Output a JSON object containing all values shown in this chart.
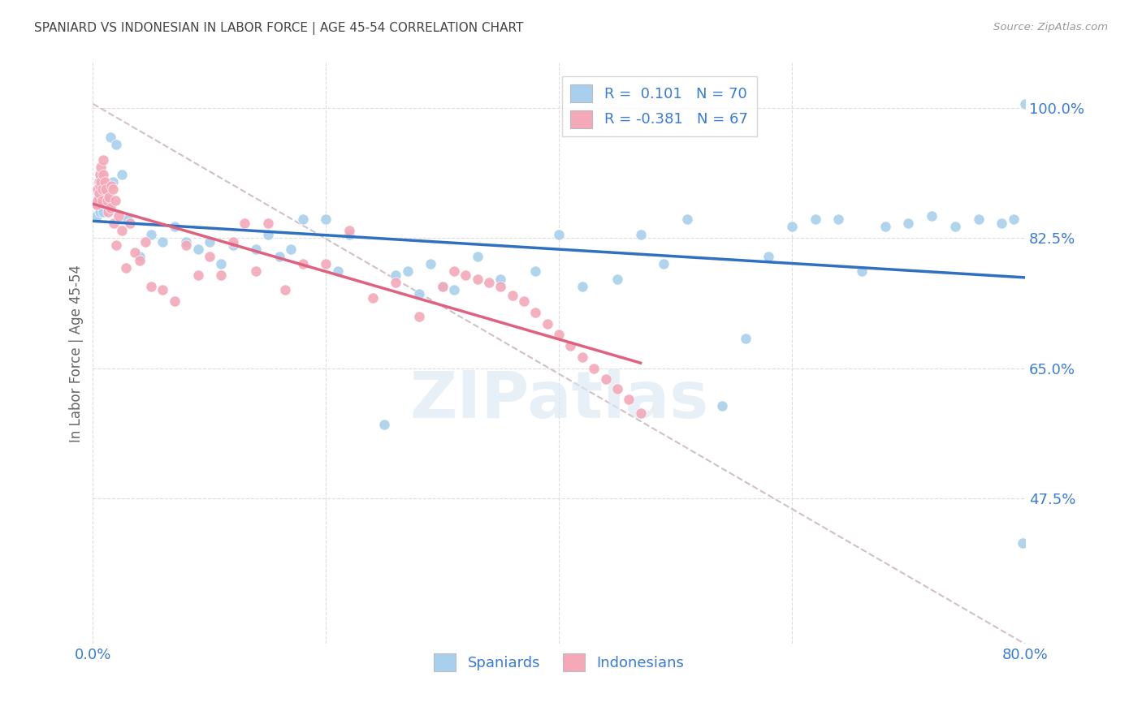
{
  "title": "SPANIARD VS INDONESIAN IN LABOR FORCE | AGE 45-54 CORRELATION CHART",
  "source": "Source: ZipAtlas.com",
  "ylabel": "In Labor Force | Age 45-54",
  "xlim": [
    0.0,
    0.8
  ],
  "ylim": [
    0.28,
    1.06
  ],
  "legend_blue_r": "0.101",
  "legend_blue_n": "70",
  "legend_pink_r": "-0.381",
  "legend_pink_n": "67",
  "blue_color": "#A8CFED",
  "pink_color": "#F4A8B8",
  "blue_line_color": "#3070C0",
  "pink_line_color": "#E06080",
  "ref_line_color": "#D0C0C8",
  "text_color": "#3A7BD5",
  "title_color": "#444444",
  "watermark": "ZIPatlas",
  "blue_x": [
    0.003,
    0.004,
    0.005,
    0.005,
    0.006,
    0.006,
    0.007,
    0.007,
    0.008,
    0.008,
    0.009,
    0.009,
    0.01,
    0.011,
    0.012,
    0.013,
    0.015,
    0.017,
    0.02,
    0.025,
    0.03,
    0.04,
    0.05,
    0.06,
    0.07,
    0.08,
    0.09,
    0.1,
    0.11,
    0.12,
    0.14,
    0.15,
    0.16,
    0.17,
    0.18,
    0.2,
    0.21,
    0.22,
    0.25,
    0.26,
    0.27,
    0.28,
    0.29,
    0.3,
    0.31,
    0.33,
    0.35,
    0.38,
    0.4,
    0.42,
    0.45,
    0.47,
    0.49,
    0.51,
    0.54,
    0.56,
    0.58,
    0.6,
    0.62,
    0.64,
    0.66,
    0.68,
    0.7,
    0.72,
    0.74,
    0.76,
    0.78,
    0.79,
    0.798,
    0.8
  ],
  "blue_y": [
    0.855,
    0.87,
    0.865,
    0.88,
    0.875,
    0.86,
    0.885,
    0.87,
    0.88,
    0.865,
    0.875,
    0.86,
    0.875,
    0.87,
    0.88,
    0.865,
    0.96,
    0.9,
    0.95,
    0.91,
    0.85,
    0.8,
    0.83,
    0.82,
    0.84,
    0.82,
    0.81,
    0.82,
    0.79,
    0.815,
    0.81,
    0.83,
    0.8,
    0.81,
    0.85,
    0.85,
    0.78,
    0.83,
    0.575,
    0.775,
    0.78,
    0.75,
    0.79,
    0.76,
    0.755,
    0.8,
    0.77,
    0.78,
    0.83,
    0.76,
    0.77,
    0.83,
    0.79,
    0.85,
    0.6,
    0.69,
    0.8,
    0.84,
    0.85,
    0.85,
    0.78,
    0.84,
    0.845,
    0.855,
    0.84,
    0.85,
    0.845,
    0.85,
    0.415,
    1.005
  ],
  "pink_x": [
    0.003,
    0.004,
    0.004,
    0.005,
    0.005,
    0.006,
    0.006,
    0.007,
    0.007,
    0.008,
    0.008,
    0.009,
    0.009,
    0.01,
    0.011,
    0.012,
    0.013,
    0.014,
    0.015,
    0.016,
    0.017,
    0.018,
    0.019,
    0.02,
    0.022,
    0.025,
    0.028,
    0.032,
    0.036,
    0.04,
    0.045,
    0.05,
    0.06,
    0.07,
    0.08,
    0.09,
    0.1,
    0.11,
    0.12,
    0.13,
    0.14,
    0.15,
    0.165,
    0.18,
    0.2,
    0.22,
    0.24,
    0.26,
    0.28,
    0.3,
    0.31,
    0.32,
    0.33,
    0.34,
    0.35,
    0.36,
    0.37,
    0.38,
    0.39,
    0.4,
    0.41,
    0.42,
    0.43,
    0.44,
    0.45,
    0.46,
    0.47
  ],
  "pink_y": [
    0.87,
    0.89,
    0.875,
    0.9,
    0.885,
    0.91,
    0.895,
    0.92,
    0.9,
    0.89,
    0.875,
    0.93,
    0.91,
    0.9,
    0.89,
    0.875,
    0.86,
    0.88,
    0.865,
    0.895,
    0.89,
    0.845,
    0.875,
    0.815,
    0.855,
    0.835,
    0.785,
    0.845,
    0.805,
    0.795,
    0.82,
    0.76,
    0.755,
    0.74,
    0.815,
    0.775,
    0.8,
    0.775,
    0.82,
    0.845,
    0.78,
    0.845,
    0.755,
    0.79,
    0.79,
    0.835,
    0.745,
    0.765,
    0.72,
    0.76,
    0.78,
    0.775,
    0.77,
    0.765,
    0.76,
    0.748,
    0.74,
    0.725,
    0.71,
    0.695,
    0.68,
    0.665,
    0.65,
    0.636,
    0.622,
    0.608,
    0.59
  ],
  "ref_line_x": [
    0.0,
    0.8
  ],
  "ref_line_y": [
    1.005,
    0.28
  ]
}
